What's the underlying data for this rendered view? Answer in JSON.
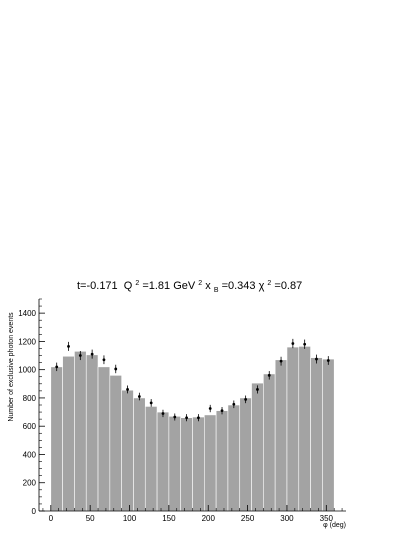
{
  "chart_data": {
    "type": "bar",
    "title_parts": {
      "t": "t=-0.171",
      "q": "Q",
      "q_exp": "2",
      "q_val": "=1.81 GeV",
      "gev_exp": "2",
      "xb": " x",
      "xb_sub": "B",
      "xb_val": "=0.343",
      "chi": " χ",
      "chi_exp": "2",
      "chi_val": "=0.87"
    },
    "xlabel": "φ (deg)",
    "ylabel": "Number of exclusive photon events",
    "xlim": [
      -15,
      375
    ],
    "ylim": [
      0,
      1500
    ],
    "bin_width": 15,
    "bin_edges_start": 0,
    "histogram": [
      1020,
      1095,
      1130,
      1105,
      1020,
      960,
      855,
      800,
      740,
      700,
      670,
      660,
      665,
      680,
      710,
      750,
      800,
      905,
      970,
      1070,
      1160,
      1165,
      1085,
      1075
    ],
    "points": [
      {
        "x": 7.5,
        "y": 1020,
        "err": 30
      },
      {
        "x": 22.5,
        "y": 1165,
        "err": 32
      },
      {
        "x": 37.5,
        "y": 1100,
        "err": 32
      },
      {
        "x": 52.5,
        "y": 1110,
        "err": 32
      },
      {
        "x": 67.5,
        "y": 1070,
        "err": 31
      },
      {
        "x": 82.5,
        "y": 1005,
        "err": 30
      },
      {
        "x": 97.5,
        "y": 860,
        "err": 28
      },
      {
        "x": 112.5,
        "y": 810,
        "err": 27
      },
      {
        "x": 127.5,
        "y": 765,
        "err": 27
      },
      {
        "x": 142.5,
        "y": 690,
        "err": 26
      },
      {
        "x": 157.5,
        "y": 665,
        "err": 25
      },
      {
        "x": 172.5,
        "y": 660,
        "err": 25
      },
      {
        "x": 187.5,
        "y": 660,
        "err": 25
      },
      {
        "x": 202.5,
        "y": 725,
        "err": 26
      },
      {
        "x": 217.5,
        "y": 710,
        "err": 26
      },
      {
        "x": 232.5,
        "y": 755,
        "err": 27
      },
      {
        "x": 247.5,
        "y": 790,
        "err": 27
      },
      {
        "x": 262.5,
        "y": 860,
        "err": 29
      },
      {
        "x": 277.5,
        "y": 960,
        "err": 30
      },
      {
        "x": 292.5,
        "y": 1060,
        "err": 31
      },
      {
        "x": 307.5,
        "y": 1185,
        "err": 33
      },
      {
        "x": 322.5,
        "y": 1180,
        "err": 33
      },
      {
        "x": 337.5,
        "y": 1075,
        "err": 31
      },
      {
        "x": 352.5,
        "y": 1065,
        "err": 31
      }
    ],
    "x_ticks": [
      "0",
      "50",
      "100",
      "150",
      "200",
      "250",
      "300",
      "350"
    ],
    "x_tick_values": [
      0,
      50,
      100,
      150,
      200,
      250,
      300,
      350
    ],
    "y_ticks": [
      "0",
      "200",
      "400",
      "600",
      "800",
      "1000",
      "1200",
      "1400"
    ],
    "y_tick_values": [
      0,
      200,
      400,
      600,
      800,
      1000,
      1200,
      1400
    ],
    "colors": {
      "bar_fill": "#a3a3a3",
      "bar_edge": "#ffffff",
      "points": "#000000",
      "axis": "#000000"
    },
    "grid": false
  }
}
